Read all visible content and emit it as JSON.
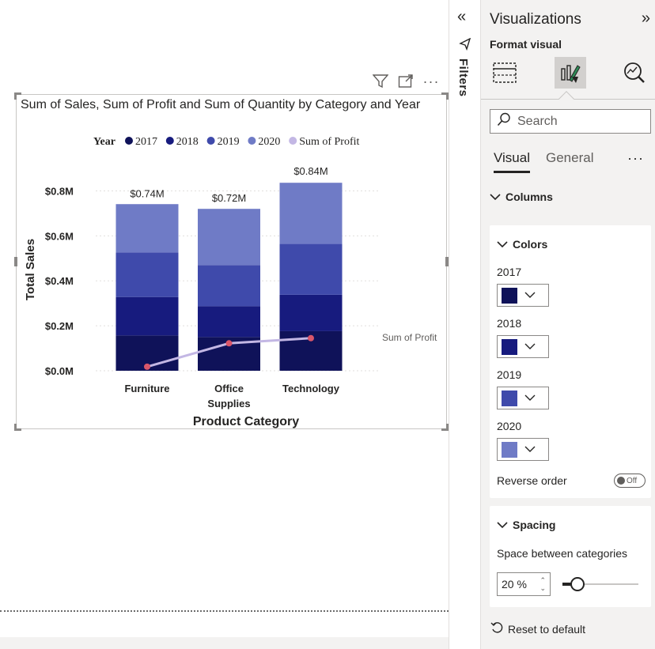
{
  "visual_header": {
    "icons": [
      "filter-icon",
      "focus-mode-icon",
      "more-options-icon"
    ],
    "more_label": "···"
  },
  "chart_data": {
    "type": "bar",
    "title": "Sum of Sales, Sum of Profit and Sum of Quantity by Category and Year",
    "xlabel": "Product Category",
    "ylabel": "Total Sales",
    "categories": [
      "Furniture",
      "Office Supplies",
      "Technology"
    ],
    "category_lines": [
      [
        "Furniture"
      ],
      [
        "Office",
        "Supplies"
      ],
      [
        "Technology"
      ]
    ],
    "ylim": [
      0,
      0.9
    ],
    "yticks": [
      0,
      0.2,
      0.4,
      0.6,
      0.8
    ],
    "ytick_labels": [
      "$0.0M",
      "$0.2M",
      "$0.4M",
      "$0.6M",
      "$0.8M"
    ],
    "grid": true,
    "legend": {
      "title": "Year",
      "placement": "top",
      "entries": [
        "2017",
        "2018",
        "2019",
        "2020",
        "Sum of Profit"
      ]
    },
    "series": [
      {
        "name": "2017",
        "color": "#0f1259",
        "values": [
          0.157,
          0.15,
          0.176
        ]
      },
      {
        "name": "2018",
        "color": "#171b7e",
        "values": [
          0.171,
          0.137,
          0.162
        ]
      },
      {
        "name": "2019",
        "color": "#3f4aab",
        "values": [
          0.198,
          0.183,
          0.226
        ]
      },
      {
        "name": "2020",
        "color": "#6f7bc6",
        "values": [
          0.215,
          0.25,
          0.272
        ]
      }
    ],
    "totals": [
      0.74,
      0.72,
      0.84
    ],
    "total_labels": [
      "$0.74M",
      "$0.72M",
      "$0.84M"
    ],
    "line_series": {
      "name": "Sum of Profit",
      "color": "#c3b7e4",
      "marker_color": "#d9566a",
      "values": [
        0.018,
        0.122,
        0.145
      ],
      "end_label": "Sum of Profit"
    }
  },
  "filters": {
    "label": "Filters",
    "collapse_glyph": "«"
  },
  "pane": {
    "title": "Visualizations",
    "expand_glyph": "»",
    "subtitle": "Format visual",
    "search_placeholder": "Search",
    "tabs": [
      "Visual",
      "General"
    ],
    "more_glyph": "···",
    "columns_label": "Columns",
    "colors_label": "Colors",
    "color_fields": [
      {
        "label": "2017",
        "color": "#0f1259"
      },
      {
        "label": "2018",
        "color": "#171b7e"
      },
      {
        "label": "2019",
        "color": "#3f4aab"
      },
      {
        "label": "2020",
        "color": "#6f7bc6"
      }
    ],
    "reverse_order_label": "Reverse order",
    "toggle_state": "Off",
    "spacing_label": "Spacing",
    "space_between_label": "Space between categories",
    "space_value": "20 %",
    "space_percent": 20,
    "reset_label": "Reset to default"
  }
}
